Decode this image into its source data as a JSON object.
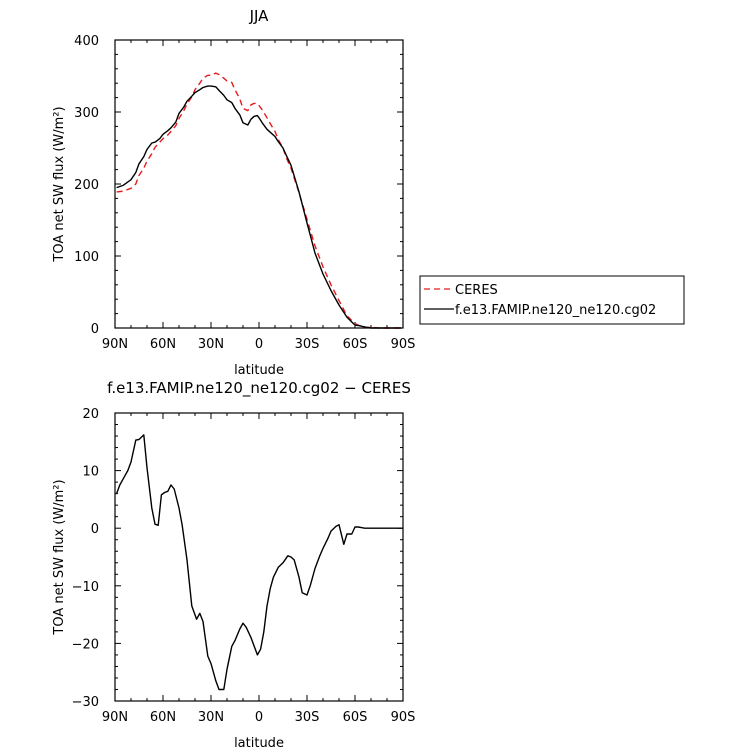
{
  "chart_data": [
    {
      "type": "line",
      "title": "JJA",
      "xlabel": "latitude",
      "ylabel": "TOA net SW flux (W/m²)",
      "ylim": [
        0,
        400
      ],
      "yticks": [
        0,
        100,
        200,
        300,
        400
      ],
      "xlim": [
        90,
        -90
      ],
      "xticks": [
        90,
        60,
        30,
        0,
        -30,
        -60,
        -90
      ],
      "xtick_labels": [
        "90N",
        "60N",
        "30N",
        "0",
        "30S",
        "60S",
        "90S"
      ],
      "grid": false,
      "legend_position": "right",
      "series": [
        {
          "name": "CERES",
          "color": "#e41a1c",
          "dash": "dashed",
          "x": [
            89,
            85,
            80,
            77,
            75,
            72,
            70,
            67,
            65,
            62,
            60,
            57,
            55,
            52,
            50,
            47,
            45,
            42,
            40,
            37,
            35,
            32,
            30,
            27,
            25,
            22,
            20,
            17,
            15,
            12,
            10,
            7,
            5,
            3,
            1,
            0,
            -2,
            -5,
            -7,
            -10,
            -12,
            -15,
            -17,
            -20,
            -25,
            -30,
            -35,
            -40,
            -45,
            -50,
            -55,
            -60,
            -63,
            -65,
            -67,
            -70,
            -75,
            -80,
            -85,
            -89
          ],
          "values": [
            189,
            190,
            194,
            200,
            212,
            222,
            232,
            242,
            251,
            258,
            263,
            268,
            273,
            281,
            291,
            302,
            311,
            321,
            331,
            340,
            347,
            351,
            351,
            354,
            352,
            347,
            343,
            341,
            331,
            318,
            305,
            302,
            310,
            312,
            312,
            309,
            303,
            292,
            284,
            273,
            262,
            250,
            237,
            222,
            188,
            151,
            114,
            85,
            60,
            38,
            17,
            6,
            3,
            2,
            1,
            1,
            0,
            0,
            0,
            0
          ]
        },
        {
          "name": "f.e13.FAMIP.ne120_ne120.cg02",
          "color": "#000000",
          "dash": "solid",
          "x": [
            89,
            85,
            80,
            77,
            75,
            72,
            70,
            67,
            65,
            62,
            60,
            57,
            55,
            52,
            50,
            47,
            45,
            42,
            40,
            37,
            35,
            32,
            30,
            27,
            25,
            22,
            20,
            17,
            15,
            12,
            10,
            7,
            5,
            3,
            1,
            0,
            -2,
            -5,
            -7,
            -10,
            -12,
            -15,
            -17,
            -20,
            -25,
            -30,
            -35,
            -40,
            -45,
            -50,
            -55,
            -60,
            -63,
            -65,
            -67,
            -70,
            -75,
            -80,
            -85,
            -89
          ],
          "values": [
            195,
            198,
            206,
            216,
            228,
            238,
            248,
            257,
            258,
            263,
            269,
            274,
            278,
            286,
            298,
            307,
            315,
            322,
            327,
            331,
            334,
            336,
            336,
            335,
            330,
            323,
            317,
            313,
            305,
            296,
            285,
            282,
            290,
            294,
            295,
            292,
            285,
            276,
            272,
            266,
            259,
            250,
            240,
            226,
            189,
            146,
            104,
            75,
            52,
            32,
            15,
            4,
            3,
            2,
            1,
            0,
            0,
            0,
            0,
            0
          ]
        }
      ]
    },
    {
      "type": "line",
      "title": "f.e13.FAMIP.ne120_ne120.cg02 − CERES",
      "xlabel": "latitude",
      "ylabel": "TOA net SW flux (W/m²)",
      "ylim": [
        -30,
        20
      ],
      "yticks": [
        -30,
        -20,
        -10,
        0,
        10,
        20
      ],
      "ytick_labels": [
        "−30",
        "−20",
        "−10",
        "0",
        "10",
        "20"
      ],
      "xlim": [
        90,
        -90
      ],
      "xticks": [
        90,
        60,
        30,
        0,
        -30,
        -60,
        -90
      ],
      "xtick_labels": [
        "90N",
        "60N",
        "30N",
        "0",
        "30S",
        "60S",
        "90S"
      ],
      "grid": false,
      "series": [
        {
          "color": "#000000",
          "dash": "solid",
          "x": [
            89,
            87,
            85,
            82,
            80,
            77,
            75,
            72,
            70,
            67,
            65,
            63,
            61,
            59,
            57,
            55,
            53,
            50,
            48,
            45,
            42,
            39,
            37,
            35,
            32,
            30,
            27,
            25,
            22,
            20,
            17,
            15,
            12,
            10,
            8,
            5,
            3,
            1,
            -1,
            -3,
            -5,
            -7,
            -9,
            -12,
            -15,
            -18,
            -20,
            -22,
            -25,
            -27,
            -30,
            -32,
            -35,
            -38,
            -40,
            -43,
            -45,
            -48,
            -50,
            -53,
            -55,
            -58,
            -60,
            -62,
            -64,
            -66,
            -69,
            -72,
            -75,
            -80,
            -85,
            -90
          ],
          "values": [
            6,
            7.5,
            8.5,
            10,
            11.5,
            15.3,
            15.4,
            16.2,
            10.5,
            3.5,
            0.7,
            0.5,
            5.8,
            6.2,
            6.4,
            7.5,
            6.8,
            3.5,
            0.5,
            -5.5,
            -13.5,
            -15.8,
            -14.8,
            -16.2,
            -22.2,
            -23.5,
            -26.5,
            -28,
            -28,
            -24.5,
            -20.5,
            -19.5,
            -17.5,
            -16.5,
            -17.2,
            -19,
            -20.5,
            -22,
            -21,
            -18,
            -13.5,
            -10.5,
            -8.5,
            -6.8,
            -6,
            -4.8,
            -5,
            -5.5,
            -8.5,
            -11.2,
            -11.6,
            -10,
            -7,
            -4.8,
            -3.5,
            -1.8,
            -0.5,
            0.3,
            0.6,
            -2.8,
            -1,
            -1,
            0.2,
            0.2,
            0.1,
            0,
            0,
            0,
            0,
            0,
            0,
            0
          ]
        }
      ]
    }
  ]
}
